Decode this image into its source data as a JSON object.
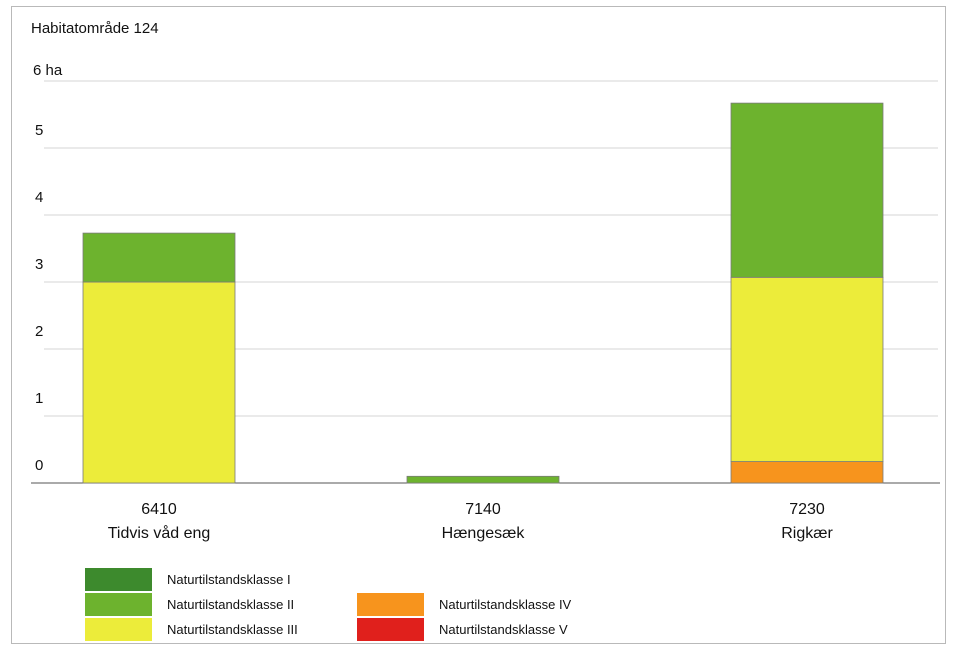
{
  "chart_data": {
    "type": "bar",
    "stacked": true,
    "title": "Habitatområde 124",
    "unit_label": "6 ha",
    "yticks": [
      "0",
      "1",
      "2",
      "3",
      "4",
      "5"
    ],
    "ylim": [
      0,
      6
    ],
    "grid": true,
    "legend_position": "bottom",
    "categories": [
      {
        "code": "6410",
        "name": "Tidvis våd eng"
      },
      {
        "code": "7140",
        "name": "Hængesæk"
      },
      {
        "code": "7230",
        "name": "Rigkær"
      }
    ],
    "series": [
      {
        "name": "Naturtilstandsklasse V",
        "color": "#e0201c",
        "values": [
          0,
          0,
          0
        ]
      },
      {
        "name": "Naturtilstandsklasse IV",
        "color": "#f7941d",
        "values": [
          0,
          0,
          0.32
        ]
      },
      {
        "name": "Naturtilstandsklasse III",
        "color": "#ecec3a",
        "values": [
          3.0,
          0,
          2.75
        ]
      },
      {
        "name": "Naturtilstandsklasse II",
        "color": "#6db32e",
        "values": [
          0.73,
          0.1,
          2.6
        ]
      },
      {
        "name": "Naturtilstandsklasse I",
        "color": "#3d8a2d",
        "values": [
          0,
          0,
          0
        ]
      }
    ],
    "legend": [
      {
        "name": "Naturtilstandsklasse I",
        "color": "#3d8a2d"
      },
      {
        "name": "Naturtilstandsklasse II",
        "color": "#6db32e"
      },
      {
        "name": "Naturtilstandsklasse III",
        "color": "#ecec3a"
      },
      {
        "name": "Naturtilstandsklasse IV",
        "color": "#f7941d"
      },
      {
        "name": "Naturtilstandsklasse V",
        "color": "#e0201c"
      }
    ]
  }
}
